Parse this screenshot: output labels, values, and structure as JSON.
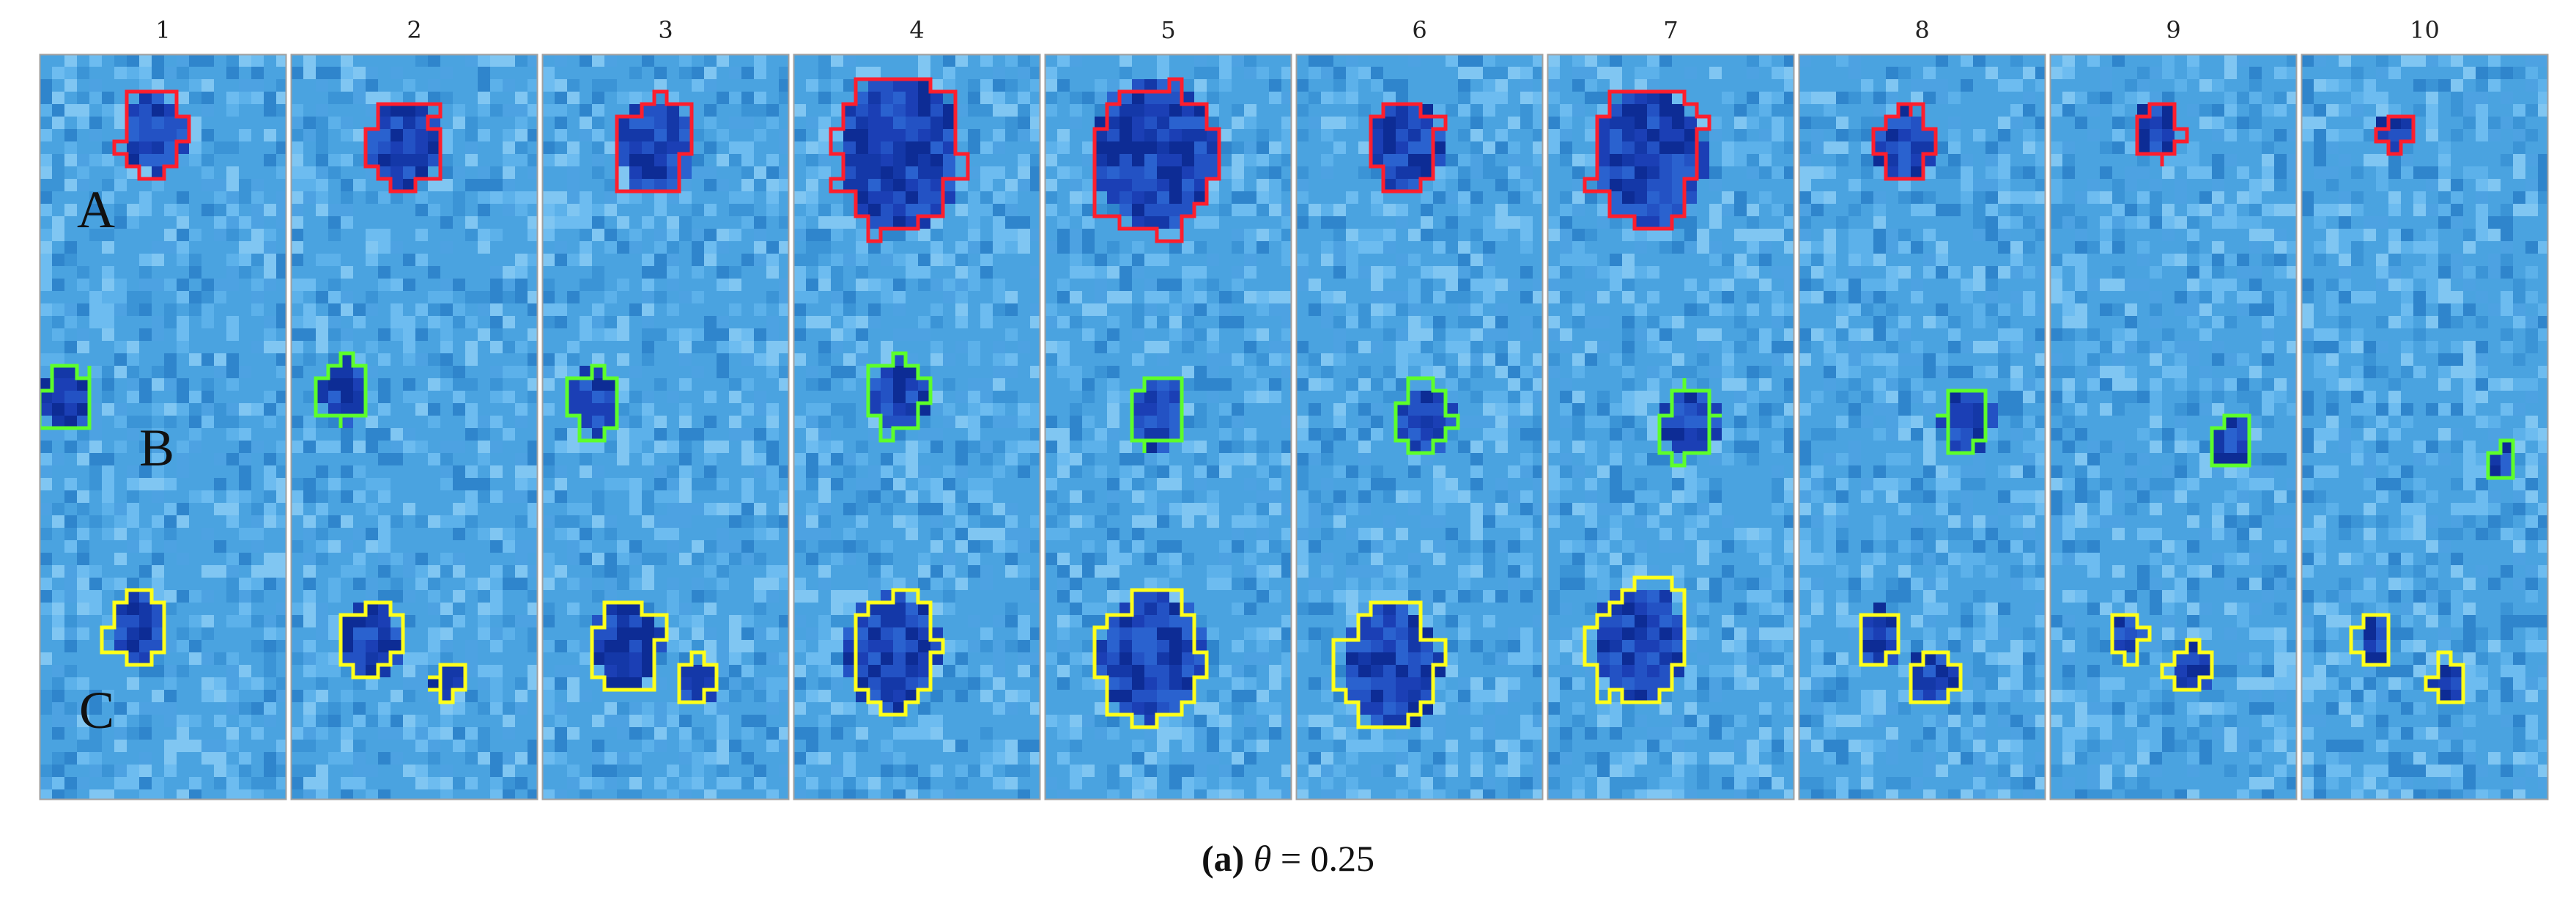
{
  "frames": [
    {
      "label": "1",
      "blobs": [
        {
          "region": "A",
          "color": "red",
          "size": 1.0
        },
        {
          "region": "B",
          "color": "green",
          "size": 1.0
        },
        {
          "region": "C",
          "color": "yellow",
          "size": 1.0
        }
      ]
    },
    {
      "label": "2",
      "blobs": [
        {
          "region": "A",
          "color": "red",
          "size": 1.1
        },
        {
          "region": "B",
          "color": "green",
          "size": 1.0
        },
        {
          "region": "C",
          "color": "yellow",
          "size": 1.0
        },
        {
          "region": "C",
          "color": "yellow",
          "size": 0.5
        }
      ]
    },
    {
      "label": "3",
      "blobs": [
        {
          "region": "A",
          "color": "red",
          "size": 1.2
        },
        {
          "region": "B",
          "color": "green",
          "size": 1.0
        },
        {
          "region": "C",
          "color": "yellow",
          "size": 1.2
        },
        {
          "region": "C",
          "color": "yellow",
          "size": 0.6
        }
      ]
    },
    {
      "label": "4",
      "blobs": [
        {
          "region": "A",
          "color": "red",
          "size": 1.9
        },
        {
          "region": "B",
          "color": "green",
          "size": 1.1
        },
        {
          "region": "C",
          "color": "yellow",
          "size": 1.6
        }
      ]
    },
    {
      "label": "5",
      "blobs": [
        {
          "region": "A",
          "color": "red",
          "size": 1.9
        },
        {
          "region": "B",
          "color": "green",
          "size": 1.1
        },
        {
          "region": "C",
          "color": "yellow",
          "size": 1.8
        }
      ]
    },
    {
      "label": "6",
      "blobs": [
        {
          "region": "A",
          "color": "red",
          "size": 1.1
        },
        {
          "region": "B",
          "color": "green",
          "size": 1.1
        },
        {
          "region": "C",
          "color": "yellow",
          "size": 1.7
        }
      ]
    },
    {
      "label": "7",
      "blobs": [
        {
          "region": "A",
          "color": "red",
          "size": 1.7
        },
        {
          "region": "B",
          "color": "green",
          "size": 1.1
        },
        {
          "region": "C",
          "color": "yellow",
          "size": 1.6
        }
      ]
    },
    {
      "label": "8",
      "blobs": [
        {
          "region": "A",
          "color": "red",
          "size": 0.9
        },
        {
          "region": "B",
          "color": "green",
          "size": 1.0
        },
        {
          "region": "C",
          "color": "yellow",
          "size": 0.8
        },
        {
          "region": "C",
          "color": "yellow",
          "size": 0.8
        }
      ]
    },
    {
      "label": "9",
      "blobs": [
        {
          "region": "A",
          "color": "red",
          "size": 0.7
        },
        {
          "region": "B",
          "color": "green",
          "size": 0.8
        },
        {
          "region": "C",
          "color": "yellow",
          "size": 0.6
        },
        {
          "region": "C",
          "color": "yellow",
          "size": 0.7
        }
      ]
    },
    {
      "label": "10",
      "blobs": [
        {
          "region": "A",
          "color": "red",
          "size": 0.5
        },
        {
          "region": "B",
          "color": "green",
          "size": 0.6
        },
        {
          "region": "C",
          "color": "yellow",
          "size": 0.6
        },
        {
          "region": "C",
          "color": "yellow",
          "size": 0.6
        }
      ]
    }
  ],
  "region_labels": [
    "A",
    "B",
    "C"
  ],
  "contour_colors": {
    "red": "#ff1e2d",
    "green": "#5dff2a",
    "yellow": "#ffff1a"
  },
  "background_color": "#4aa3e0",
  "caption": {
    "label": "(a)",
    "symbol": "θ",
    "value": "= 0.25"
  }
}
